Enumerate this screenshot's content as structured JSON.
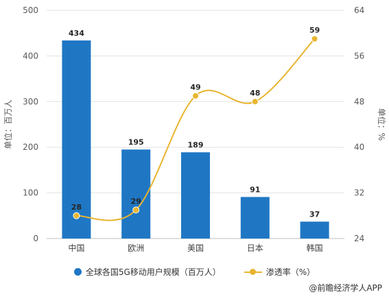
{
  "chart_data": {
    "type": "bar",
    "categories": [
      "中国",
      "欧洲",
      "美国",
      "日本",
      "韩国"
    ],
    "series": [
      {
        "name": "全球各国5G移动用户规模（百万人）",
        "type": "bar",
        "axis": "left",
        "values": [
          434,
          195,
          189,
          91,
          37
        ],
        "color": "#1f77c4"
      },
      {
        "name": "渗透率（%）",
        "type": "line",
        "axis": "right",
        "smooth": true,
        "values": [
          28,
          29,
          49,
          48,
          59
        ],
        "color": "#e8b530"
      }
    ],
    "y_left": {
      "label": "单位：百万人",
      "min": 0,
      "max": 500,
      "ticks": [
        0,
        100,
        200,
        300,
        400,
        500
      ]
    },
    "y_right": {
      "label": "单位：%",
      "min": 24,
      "max": 64,
      "ticks": [
        24,
        32,
        40,
        48,
        56,
        64
      ]
    },
    "grid": true,
    "legend_position": "bottom"
  },
  "source": "@前瞻经济学人APP"
}
